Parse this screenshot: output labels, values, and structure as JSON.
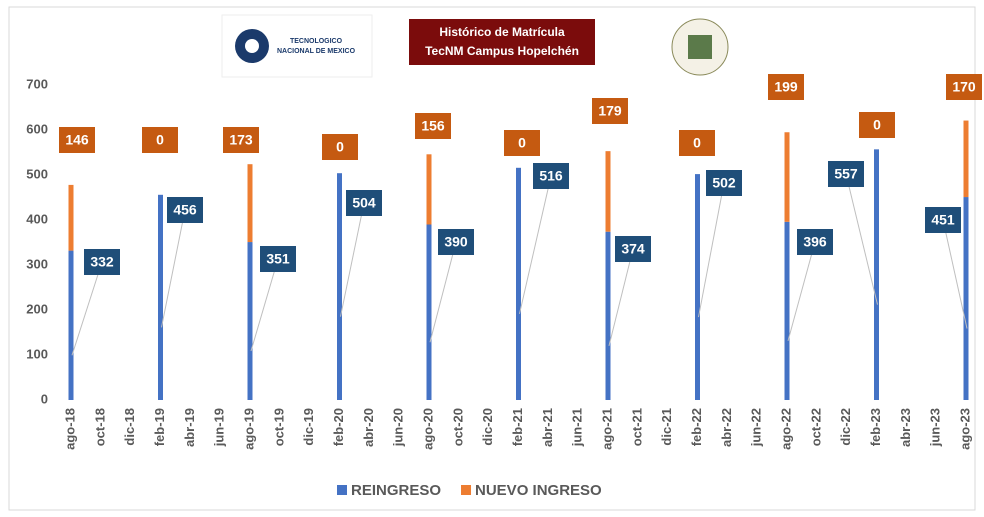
{
  "chart_data": {
    "type": "stacked_bar",
    "title": "Histórico de Matrícula",
    "subtitle": "TecNM Campus Hopelchén",
    "logo_text": [
      "TECNOLOGICO",
      "NACIONAL DE MEXICO"
    ],
    "categories": [
      "ago-18",
      null,
      "oct-18",
      null,
      "dic-18",
      null,
      "feb-19",
      null,
      "abr-19",
      null,
      "jun-19",
      null,
      "ago-19",
      null,
      "oct-19",
      null,
      "dic-19",
      null,
      "feb-20",
      null,
      "abr-20",
      null,
      "jun-20",
      null,
      "ago-20",
      null,
      "oct-20",
      null,
      "dic-20",
      null,
      "feb-21",
      null,
      "abr-21",
      null,
      "jun-21",
      null,
      "ago-21",
      null,
      "oct-21",
      null,
      "dic-21",
      null,
      "feb-22",
      null,
      "abr-22",
      null,
      "jun-22",
      null,
      "ago-22",
      null,
      "oct-22",
      null,
      "dic-22",
      null,
      "feb-23",
      null,
      "abr-23",
      null,
      "jun-23",
      null,
      "ago-23"
    ],
    "series": [
      {
        "name": "REINGRESO",
        "color": "#4472c4",
        "label_color": "#1f4e79",
        "values": [
          332,
          null,
          null,
          null,
          null,
          null,
          456,
          null,
          null,
          null,
          null,
          null,
          351,
          null,
          null,
          null,
          null,
          null,
          504,
          null,
          null,
          null,
          null,
          null,
          390,
          null,
          null,
          null,
          null,
          null,
          516,
          null,
          null,
          null,
          null,
          null,
          374,
          null,
          null,
          null,
          null,
          null,
          502,
          null,
          null,
          null,
          null,
          null,
          396,
          null,
          null,
          null,
          null,
          null,
          557,
          null,
          null,
          null,
          null,
          null,
          451
        ]
      },
      {
        "name": "NUEVO INGRESO",
        "color": "#ed7d31",
        "label_color": "#c55a11",
        "values": [
          146,
          null,
          null,
          null,
          null,
          null,
          0,
          null,
          null,
          null,
          null,
          null,
          173,
          null,
          null,
          null,
          null,
          null,
          0,
          null,
          null,
          null,
          null,
          null,
          156,
          null,
          null,
          null,
          null,
          null,
          0,
          null,
          null,
          null,
          null,
          null,
          179,
          null,
          null,
          null,
          null,
          null,
          0,
          null,
          null,
          null,
          null,
          null,
          199,
          null,
          null,
          null,
          null,
          null,
          0,
          null,
          null,
          null,
          null,
          null,
          170
        ]
      }
    ],
    "ylim": [
      0,
      700
    ],
    "yticks": [
      0,
      100,
      200,
      300,
      400,
      500,
      600,
      700
    ],
    "grid": false,
    "legend": "bottom"
  }
}
